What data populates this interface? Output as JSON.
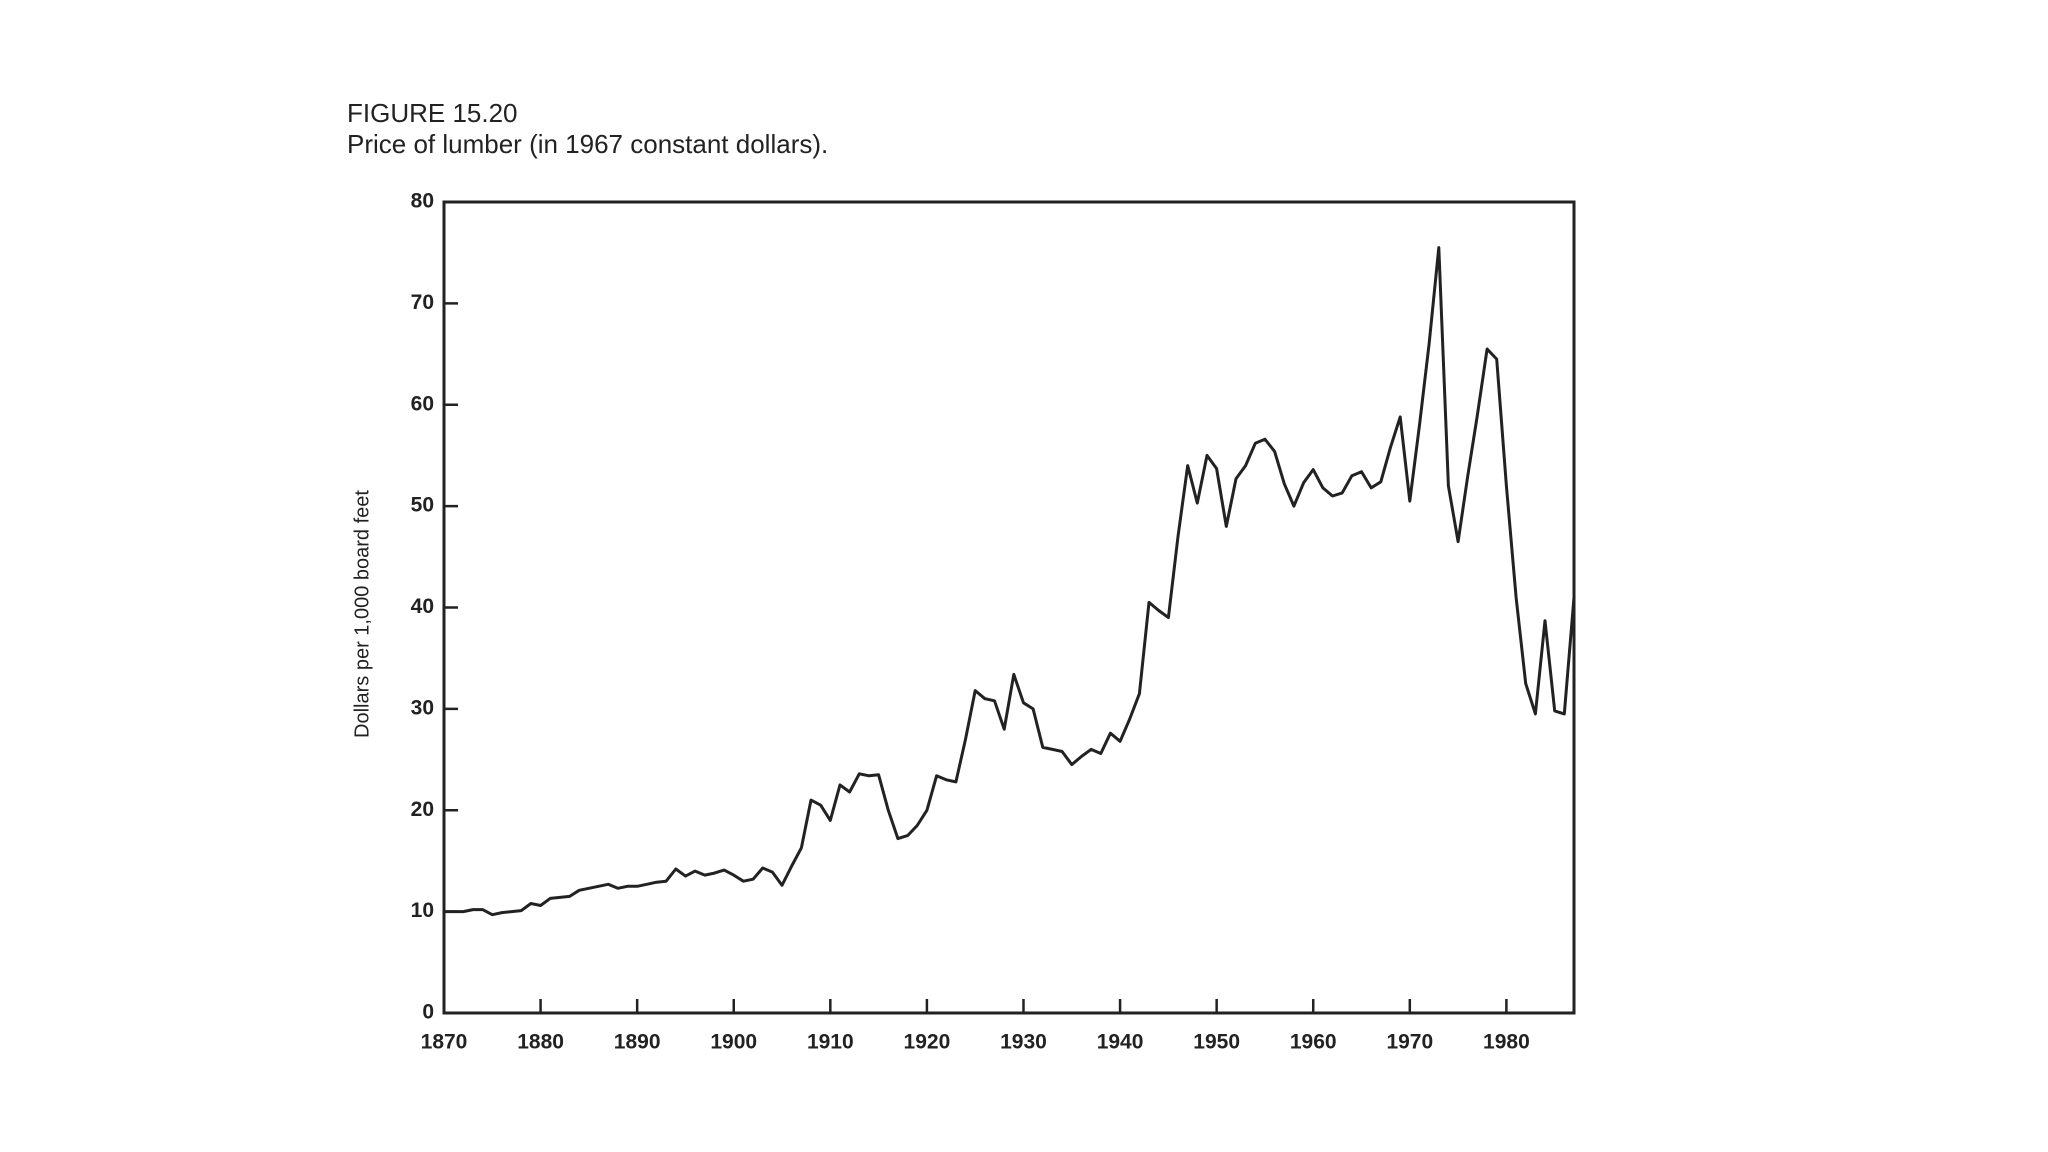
{
  "chart_data": {
    "type": "line",
    "figure_label": "FIGURE 15.20",
    "title": "Price of lumber (in 1967 constant dollars).",
    "y_label": "Dollars per 1,000 board feet",
    "color": "#222222",
    "x": [
      1870,
      1871,
      1872,
      1873,
      1874,
      1875,
      1876,
      1877,
      1878,
      1879,
      1880,
      1881,
      1882,
      1883,
      1884,
      1885,
      1886,
      1887,
      1888,
      1889,
      1890,
      1891,
      1892,
      1893,
      1894,
      1895,
      1896,
      1897,
      1898,
      1899,
      1900,
      1901,
      1902,
      1903,
      1904,
      1905,
      1906,
      1907,
      1908,
      1909,
      1910,
      1911,
      1912,
      1913,
      1914,
      1915,
      1916,
      1917,
      1918,
      1919,
      1920,
      1921,
      1922,
      1923,
      1924,
      1925,
      1926,
      1927,
      1928,
      1929,
      1930,
      1931,
      1932,
      1933,
      1934,
      1935,
      1936,
      1937,
      1938,
      1939,
      1940,
      1941,
      1942,
      1943,
      1944,
      1945,
      1946,
      1947,
      1948,
      1949,
      1950,
      1951,
      1952,
      1953,
      1954,
      1955,
      1956,
      1957,
      1958,
      1959,
      1960,
      1961,
      1962,
      1963,
      1964,
      1965,
      1966,
      1967,
      1968,
      1969,
      1970,
      1971,
      1972,
      1973,
      1974,
      1975,
      1976,
      1977,
      1978,
      1979,
      1980,
      1981,
      1982,
      1983,
      1984,
      1985,
      1986,
      1987
    ],
    "values": [
      10,
      10,
      10,
      10.2,
      10.2,
      9.7,
      9.9,
      10,
      10.1,
      10.8,
      10.6,
      11.3,
      11.4,
      11.5,
      12.1,
      12.3,
      12.5,
      12.7,
      12.3,
      12.5,
      12.5,
      12.7,
      12.9,
      13,
      14.2,
      13.5,
      14,
      13.6,
      13.8,
      14.1,
      13.6,
      13,
      13.2,
      14.3,
      13.9,
      12.6,
      14.5,
      16.3,
      21,
      20.5,
      19,
      22.5,
      21.8,
      23.6,
      23.4,
      23.5,
      20,
      17.2,
      17.5,
      18.5,
      20,
      23.4,
      23,
      22.8,
      27,
      31.8,
      31,
      30.8,
      28,
      33.4,
      30.6,
      30,
      26.2,
      26,
      25.8,
      24.5,
      25.3,
      26,
      25.6,
      27.6,
      26.8,
      29,
      31.5,
      40.5,
      39.7,
      39,
      47,
      54,
      50.3,
      55,
      53.7,
      48,
      52.7,
      54,
      56.2,
      56.6,
      55.4,
      52.2,
      50,
      52.3,
      53.6,
      51.8,
      51,
      51.3,
      53,
      53.4,
      51.8,
      52.4,
      55.8,
      58.8,
      50.5,
      58,
      66,
      75.5,
      52,
      46.5,
      53,
      59,
      65.5,
      64.5,
      52,
      41,
      32.5,
      29.5,
      38.7,
      29.8,
      29.5,
      41
    ],
    "xlim": [
      1870,
      1987
    ],
    "ylim": [
      0,
      80
    ],
    "xticks": [
      1870,
      1880,
      1890,
      1900,
      1910,
      1920,
      1930,
      1940,
      1950,
      1960,
      1970,
      1980
    ],
    "yticks": [
      0,
      10,
      20,
      30,
      40,
      50,
      60,
      70,
      80
    ]
  }
}
